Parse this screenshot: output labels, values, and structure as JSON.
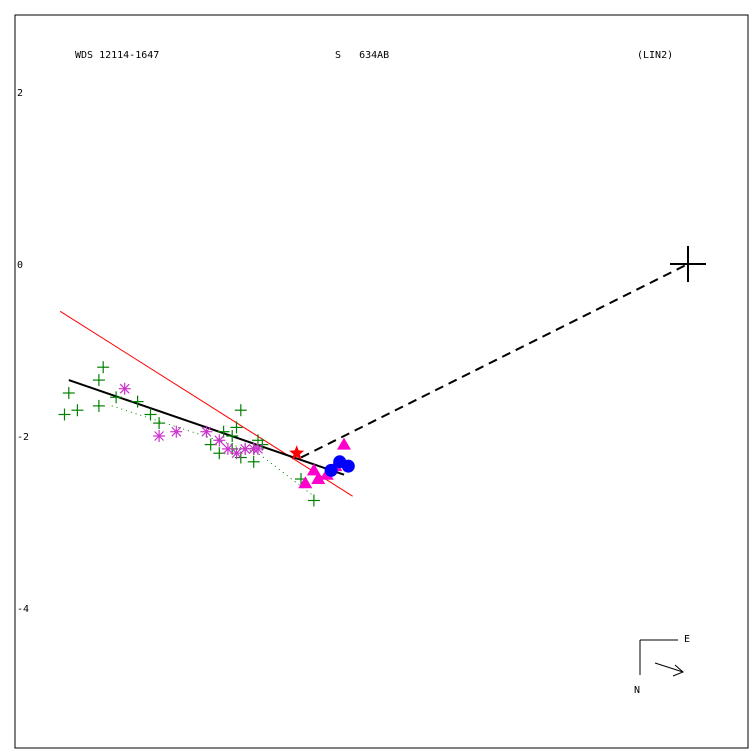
{
  "header": {
    "wds": "WDS 12114-1647",
    "discoverer": "S   634AB",
    "method": "(LIN2)"
  },
  "compass": {
    "east": "E",
    "north": "N"
  },
  "chart_data": {
    "type": "scatter",
    "yticks": [
      "2",
      "0",
      "-2",
      "-4"
    ],
    "ytick_values": [
      2,
      0,
      -2,
      -4
    ],
    "xlim": [
      -7.8,
      0.8
    ],
    "ylim": [
      -5.75,
      2.8
    ],
    "primary": [
      0,
      0
    ],
    "series": [
      {
        "marker": "plus",
        "color": "#008000",
        "points": [
          [
            -6.8,
            -1.2
          ],
          [
            -6.85,
            -1.35
          ],
          [
            -7.2,
            -1.5
          ],
          [
            -7.1,
            -1.7
          ],
          [
            -7.25,
            -1.75
          ],
          [
            -6.85,
            -1.65
          ],
          [
            -6.65,
            -1.55
          ],
          [
            -6.4,
            -1.6
          ],
          [
            -6.25,
            -1.75
          ],
          [
            -6.15,
            -1.85
          ],
          [
            -5.2,
            -1.7
          ],
          [
            -5.25,
            -1.9
          ],
          [
            -5.4,
            -1.95
          ],
          [
            -5.0,
            -2.05
          ],
          [
            -4.95,
            -2.1
          ],
          [
            -5.55,
            -2.1
          ],
          [
            -5.45,
            -2.2
          ],
          [
            -5.2,
            -2.25
          ],
          [
            -5.3,
            -2.0
          ],
          [
            -5.05,
            -2.3
          ],
          [
            -4.5,
            -2.5
          ],
          [
            -4.35,
            -2.75
          ],
          [
            -5.15,
            -2.15
          ],
          [
            -5.05,
            -2.15
          ],
          [
            -5.3,
            -2.15
          ]
        ]
      },
      {
        "marker": "asterisk",
        "color": "#cc33cc",
        "points": [
          [
            -6.55,
            -1.45
          ],
          [
            -5.95,
            -1.95
          ],
          [
            -5.6,
            -1.95
          ],
          [
            -5.45,
            -2.05
          ],
          [
            -5.35,
            -2.15
          ],
          [
            -5.25,
            -2.2
          ],
          [
            -5.15,
            -2.15
          ],
          [
            -5.05,
            -2.15
          ],
          [
            -5.0,
            -2.15
          ],
          [
            -6.15,
            -2.0
          ]
        ]
      },
      {
        "marker": "star",
        "color": "#ff0000",
        "points": [
          [
            -4.55,
            -2.2
          ]
        ]
      },
      {
        "marker": "triangle",
        "color": "#ff00cc",
        "points": [
          [
            -4.0,
            -2.1
          ],
          [
            -4.1,
            -2.35
          ],
          [
            -4.2,
            -2.45
          ],
          [
            -4.35,
            -2.4
          ],
          [
            -4.3,
            -2.5
          ],
          [
            -4.45,
            -2.55
          ]
        ]
      },
      {
        "marker": "circle",
        "color": "#0000ff",
        "points": [
          [
            -4.05,
            -2.3
          ],
          [
            -3.95,
            -2.35
          ],
          [
            -4.15,
            -2.4
          ]
        ]
      }
    ],
    "orbit_line": {
      "color": "#000000",
      "points": [
        [
          -7.2,
          -1.35
        ],
        [
          -4.0,
          -2.45
        ]
      ]
    },
    "fit_line": {
      "color": "#ff0000",
      "points": [
        [
          -7.3,
          -0.55
        ],
        [
          -3.9,
          -2.7
        ]
      ]
    },
    "dashed_line": {
      "color": "#000000",
      "points": [
        [
          -4.5,
          -2.25
        ],
        [
          0,
          0
        ]
      ]
    },
    "dotted_line": {
      "color": "#008000",
      "points": [
        [
          -6.7,
          -1.65
        ],
        [
          -5.0,
          -2.2
        ],
        [
          -4.35,
          -2.7
        ]
      ]
    }
  }
}
